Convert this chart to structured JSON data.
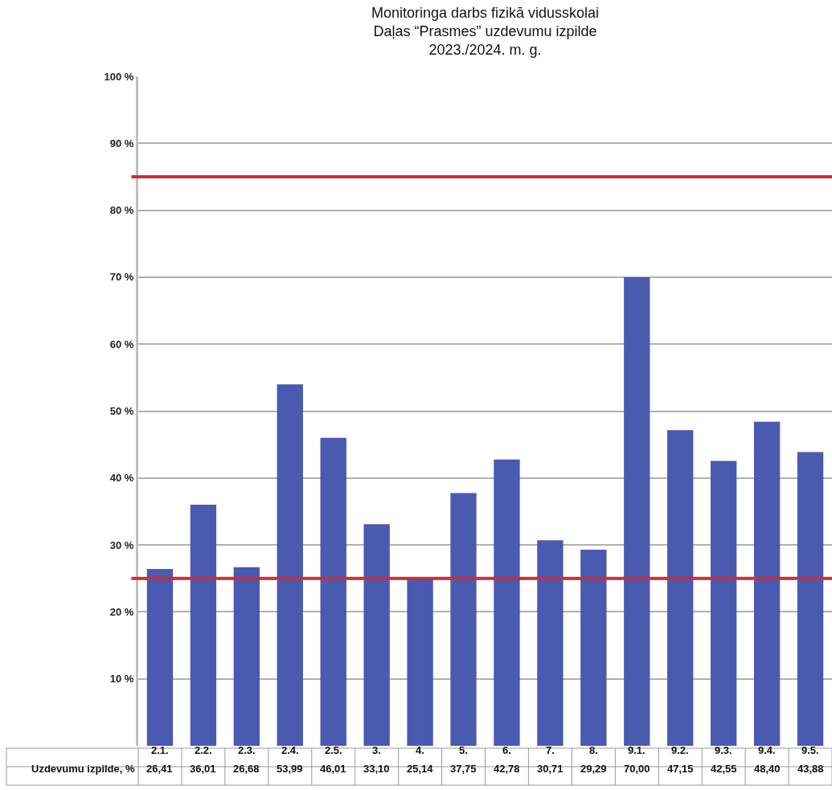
{
  "chart_data": {
    "type": "bar",
    "title": "Monitoringa darbs fizikā vidusskolai\nDaļas “Prasmes” uzdevumu izpilde\n2023./2024. m. g.",
    "categories": [
      "2.1.",
      "2.2.",
      "2.3.",
      "2.4.",
      "2.5.",
      "3.",
      "4.",
      "5.",
      "6.",
      "7.",
      "8.",
      "9.1.",
      "9.2.",
      "9.3.",
      "9.4.",
      "9.5."
    ],
    "series": [
      {
        "name": "Uzdevumu izpilde, %",
        "color": "#4a5ab0",
        "values": [
          26.41,
          36.01,
          26.68,
          53.99,
          46.01,
          33.1,
          25.14,
          37.75,
          42.78,
          30.71,
          29.29,
          70.0,
          47.15,
          42.55,
          48.4,
          43.88
        ],
        "value_labels": [
          "26,41",
          "36,01",
          "26,68",
          "53,99",
          "46,01",
          "33,10",
          "25,14",
          "37,75",
          "42,78",
          "30,71",
          "29,29",
          "70,00",
          "47,15",
          "42,55",
          "48,40",
          "43,88"
        ]
      }
    ],
    "ylim": [
      0,
      100
    ],
    "yticks": [
      {
        "value": 10,
        "label": "10 %"
      },
      {
        "value": 20,
        "label": "20 %"
      },
      {
        "value": 30,
        "label": "30 %"
      },
      {
        "value": 40,
        "label": "40 %"
      },
      {
        "value": 50,
        "label": "50 %"
      },
      {
        "value": 60,
        "label": "60 %"
      },
      {
        "value": 70,
        "label": "70 %"
      },
      {
        "value": 80,
        "label": "80 %"
      },
      {
        "value": 90,
        "label": "90 %"
      },
      {
        "value": 100,
        "label": "100 %"
      }
    ],
    "grid": "y",
    "legend": false,
    "ref_lines": [
      {
        "axis": "y",
        "value": 85,
        "color": "#c8303a"
      },
      {
        "axis": "y",
        "value": 25,
        "color": "#c8303a"
      }
    ]
  }
}
